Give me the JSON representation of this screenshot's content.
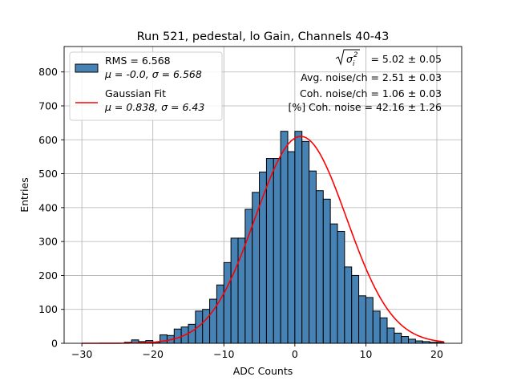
{
  "chart_data": {
    "type": "bar",
    "title": "Run 521, pedestal, lo Gain, Channels 40-43",
    "xlabel": "ADC Counts",
    "ylabel": "Entries",
    "xlim": [
      -32.5,
      23.5
    ],
    "ylim": [
      0,
      875
    ],
    "xticks": [
      -30,
      -20,
      -10,
      0,
      10,
      20
    ],
    "yticks": [
      0,
      100,
      200,
      300,
      400,
      500,
      600,
      700,
      800
    ],
    "grid": true,
    "legend_position": "top-left",
    "bin_width": 1,
    "bin_start": -24,
    "counts": [
      3,
      10,
      5,
      8,
      3,
      25,
      23,
      42,
      48,
      56,
      95,
      100,
      130,
      172,
      238,
      310,
      310,
      395,
      445,
      505,
      545,
      545,
      625,
      565,
      625,
      595,
      508,
      450,
      425,
      352,
      330,
      225,
      200,
      140,
      135,
      95,
      75,
      45,
      30,
      20,
      12,
      7,
      5,
      3,
      3
    ],
    "histogram": {
      "name_line1": "RMS = 6.568",
      "name_line2": "μ = -0.0, σ = 6.568",
      "color": "#4682b4",
      "edgecolor": "#000000"
    },
    "fit": {
      "name_line1": "Gaussian Fit",
      "name_line2": "μ = 0.838, σ = 6.43",
      "mu": 0.838,
      "sigma": 6.43,
      "amplitude": 610,
      "x_range": [
        -30,
        21
      ],
      "color": "#ff0000"
    },
    "annotations": {
      "sqrt_value": "= 5.02 ± 0.05",
      "avg_noise": "Avg. noise/ch = 2.51 ± 0.03",
      "coh_noise": "Coh. noise/ch = 1.06 ± 0.03",
      "coh_percent": "[%] Coh. noise = 42.16 ± 1.26"
    }
  }
}
